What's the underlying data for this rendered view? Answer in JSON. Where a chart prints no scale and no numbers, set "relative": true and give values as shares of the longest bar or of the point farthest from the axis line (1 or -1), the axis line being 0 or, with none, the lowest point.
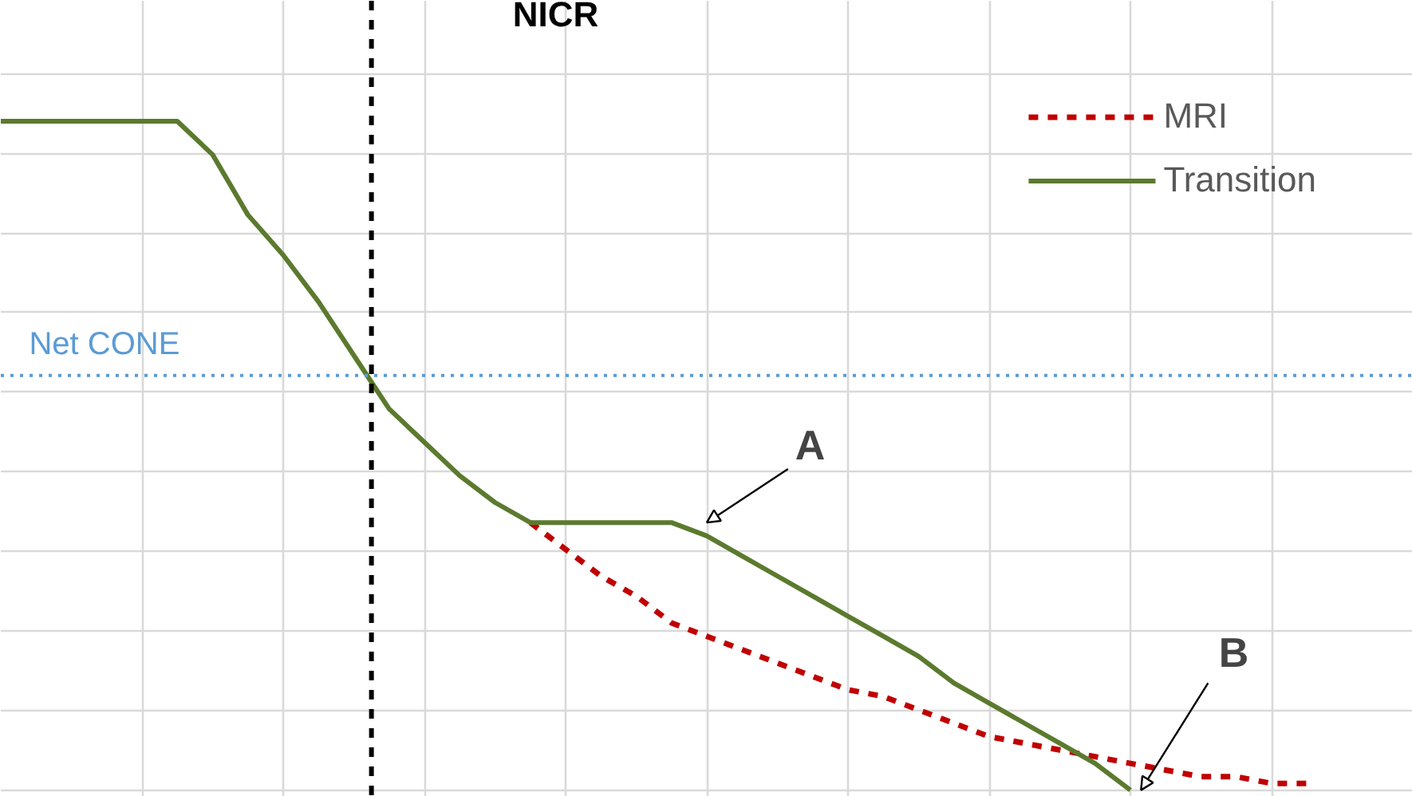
{
  "chart_data": {
    "type": "line",
    "relative": true,
    "categories": [
      null,
      null,
      null,
      null,
      null,
      null,
      null,
      null,
      null,
      null,
      null,
      null,
      null,
      null,
      null,
      null,
      null,
      null,
      null,
      null,
      null,
      null,
      null,
      null,
      null,
      null,
      null,
      null,
      null,
      null,
      null,
      null,
      null,
      null,
      null,
      null,
      null,
      null,
      null,
      null,
      null
    ],
    "series": [
      {
        "name": "MRI",
        "color": "#c00000",
        "line_style": "dashed",
        "values": [
          null,
          null,
          null,
          null,
          null,
          null,
          null,
          null,
          null,
          null,
          null,
          null,
          null,
          null,
          null,
          0.4,
          0.36,
          0.32,
          0.29,
          0.25,
          0.23,
          0.21,
          0.19,
          0.17,
          0.15,
          0.14,
          0.12,
          0.1,
          0.08,
          0.07,
          0.06,
          0.05,
          0.04,
          0.03,
          0.02,
          0.02,
          0.01,
          0.01,
          null,
          null,
          null
        ]
      },
      {
        "name": "Transition",
        "color": "#5b7a2e",
        "line_style": "solid",
        "values": [
          1.0,
          1.0,
          1.0,
          1.0,
          1.0,
          1.0,
          0.95,
          0.86,
          0.8,
          0.73,
          0.65,
          0.57,
          0.52,
          0.47,
          0.43,
          0.4,
          0.4,
          0.4,
          0.4,
          0.4,
          0.38,
          0.35,
          0.32,
          0.29,
          0.26,
          0.23,
          0.2,
          0.16,
          0.13,
          0.1,
          0.07,
          0.04,
          0.0,
          null,
          null,
          null,
          null,
          null,
          null,
          null,
          null
        ]
      }
    ],
    "ref_lines": [
      {
        "axis": "y",
        "value": 0.62,
        "label": "Net CONE",
        "color": "#5b9bd5",
        "line_style": "dotted"
      }
    ],
    "annotations": [
      "NICR",
      "A",
      "B"
    ],
    "grid": true,
    "legend": "top right"
  }
}
